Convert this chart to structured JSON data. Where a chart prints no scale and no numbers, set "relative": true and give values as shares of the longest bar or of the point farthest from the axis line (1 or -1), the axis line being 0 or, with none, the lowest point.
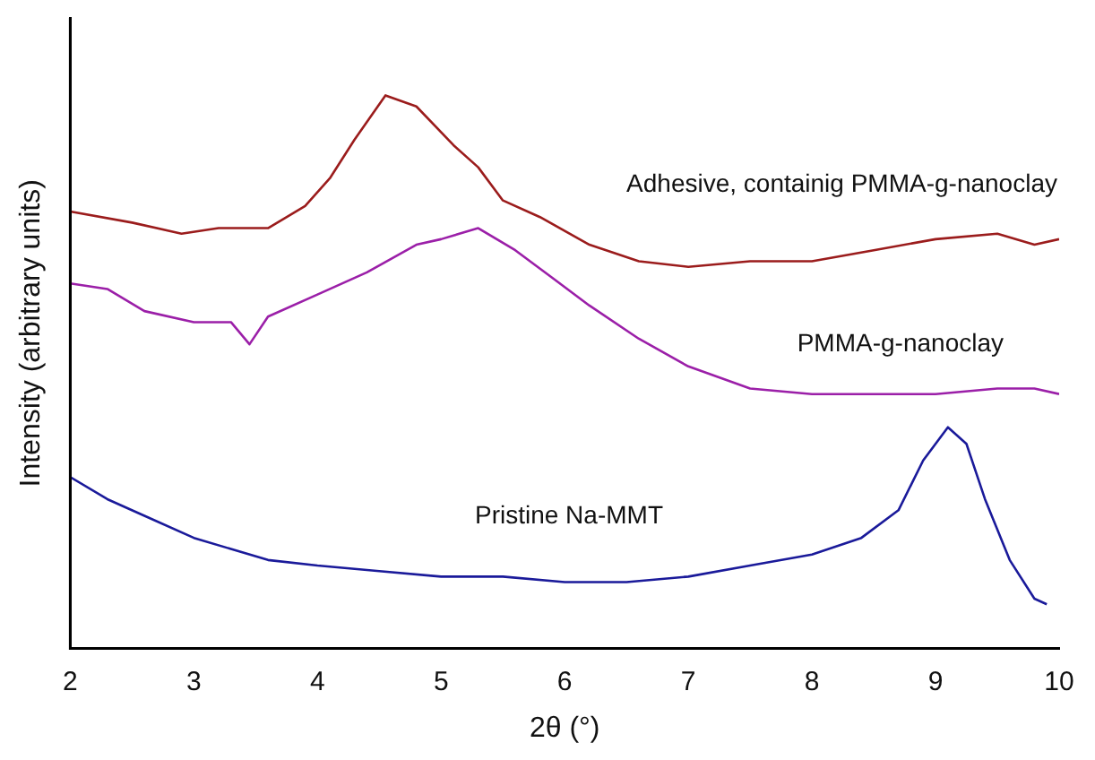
{
  "chart_data": {
    "type": "line",
    "relative": true,
    "xlabel": "2θ (°)",
    "ylabel": "Intensity (arbitrary units)",
    "xlim": [
      2,
      10
    ],
    "xticks": [
      2,
      3,
      4,
      5,
      6,
      7,
      8,
      9,
      10
    ],
    "grid": false,
    "legend": false,
    "marker": "none",
    "line_style": "solid",
    "series": [
      {
        "name": "Adhesive, containig PMMA-g-nanoclay",
        "color": "#9b1c1c",
        "x": [
          2.0,
          2.5,
          2.9,
          3.2,
          3.6,
          3.9,
          4.1,
          4.3,
          4.55,
          4.8,
          5.1,
          5.3,
          5.5,
          5.8,
          6.2,
          6.6,
          7.0,
          7.5,
          8.0,
          8.5,
          9.0,
          9.5,
          9.8,
          10.0
        ],
        "values": [
          0.79,
          0.77,
          0.75,
          0.76,
          0.76,
          0.8,
          0.85,
          0.92,
          1.0,
          0.98,
          0.91,
          0.87,
          0.81,
          0.78,
          0.73,
          0.7,
          0.69,
          0.7,
          0.7,
          0.72,
          0.74,
          0.75,
          0.73,
          0.74
        ]
      },
      {
        "name": "PMMA-g-nanoclay",
        "color": "#9b1fa8",
        "x": [
          2.0,
          2.3,
          2.6,
          3.0,
          3.3,
          3.45,
          3.6,
          4.0,
          4.4,
          4.8,
          5.0,
          5.3,
          5.6,
          5.9,
          6.2,
          6.6,
          7.0,
          7.5,
          8.0,
          8.5,
          9.0,
          9.5,
          9.8,
          10.0
        ],
        "values": [
          0.66,
          0.65,
          0.61,
          0.59,
          0.59,
          0.55,
          0.6,
          0.64,
          0.68,
          0.73,
          0.74,
          0.76,
          0.72,
          0.67,
          0.62,
          0.56,
          0.51,
          0.47,
          0.46,
          0.46,
          0.46,
          0.47,
          0.47,
          0.46
        ]
      },
      {
        "name": "Pristine Na-MMT",
        "color": "#1a1a9a",
        "x": [
          2.0,
          2.3,
          2.6,
          3.0,
          3.3,
          3.6,
          4.0,
          4.5,
          5.0,
          5.5,
          6.0,
          6.5,
          7.0,
          7.5,
          8.0,
          8.4,
          8.7,
          8.9,
          9.1,
          9.25,
          9.4,
          9.6,
          9.8,
          9.9
        ],
        "values": [
          0.31,
          0.27,
          0.24,
          0.2,
          0.18,
          0.16,
          0.15,
          0.14,
          0.13,
          0.13,
          0.12,
          0.12,
          0.13,
          0.15,
          0.17,
          0.2,
          0.25,
          0.34,
          0.4,
          0.37,
          0.27,
          0.16,
          0.09,
          0.08
        ]
      }
    ]
  }
}
